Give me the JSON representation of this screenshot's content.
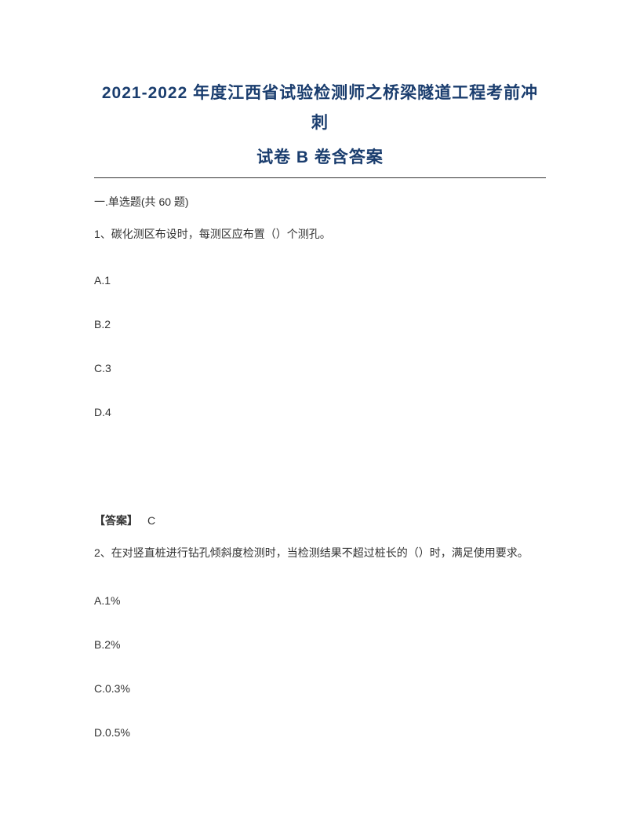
{
  "title": {
    "line1": "2021-2022 年度江西省试验检测师之桥梁隧道工程考前冲刺",
    "line2": "试卷 B 卷含答案"
  },
  "section_header": "一.单选题(共 60 题)",
  "question1": {
    "text": "1、碳化测区布设时，每测区应布置（）个测孔。",
    "options": {
      "a": "A.1",
      "b": "B.2",
      "c": "C.3",
      "d": "D.4"
    },
    "answer_label": "【答案】",
    "answer_value": "C"
  },
  "question2": {
    "text": "2、在对竖直桩进行钻孔倾斜度检测时，当检测结果不超过桩长的（）时，满足使用要求。",
    "options": {
      "a": "A.1%",
      "b": "B.2%",
      "c": "C.0.3%",
      "d": "D.0.5%"
    }
  }
}
